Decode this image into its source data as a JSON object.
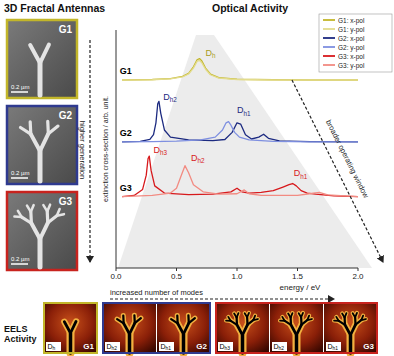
{
  "header": {
    "left_title": "3D Fractal Antennas"
  },
  "sem_images": {
    "arrow_label": "higher generation",
    "items": [
      {
        "label": "G1",
        "scale_bar": "0.2 µm",
        "color": "#c2b62a"
      },
      {
        "label": "G2",
        "scale_bar": "0.2 µm",
        "color": "#2f3a8f"
      },
      {
        "label": "G3",
        "scale_bar": "0.2 µm",
        "color": "#c8231e"
      }
    ]
  },
  "chart_data": {
    "type": "line",
    "title": "Optical Activity",
    "xlabel": "energy / eV",
    "ylabel": "extinction cross-section / arb. unit.",
    "xlim": [
      0,
      2
    ],
    "xticks": [
      {
        "value": 0,
        "label": "0.0"
      },
      {
        "value": 0.5,
        "label": "0.5"
      },
      {
        "value": 1,
        "label": "1.0"
      },
      {
        "value": 1.5,
        "label": "1.5"
      },
      {
        "value": 2,
        "label": "2.0"
      }
    ],
    "ylim": [
      0,
      10
    ],
    "tick_labels": "x",
    "legend": "upper right",
    "arrow_label": "broader operating window",
    "series": [
      {
        "name": "G1: x-pol",
        "color": "#c2b62a",
        "x": [
          0.05,
          0.3,
          0.45,
          0.55,
          0.6,
          0.64,
          0.67,
          0.69,
          0.71,
          0.74,
          0.78,
          0.85,
          1.0,
          1.3,
          1.6,
          2.0
        ],
        "values": [
          7.9,
          7.92,
          7.96,
          8.05,
          8.18,
          8.45,
          8.75,
          8.8,
          8.7,
          8.4,
          8.15,
          8.0,
          7.93,
          7.91,
          7.9,
          7.9
        ]
      },
      {
        "name": "G1: y-pol",
        "color": "#e3dc8c",
        "x": [
          0.05,
          0.3,
          0.45,
          0.55,
          0.6,
          0.64,
          0.67,
          0.69,
          0.71,
          0.74,
          0.78,
          0.85,
          1.0,
          1.3,
          1.6,
          2.0
        ],
        "values": [
          7.9,
          7.91,
          7.95,
          8.03,
          8.15,
          8.4,
          8.68,
          8.72,
          8.62,
          8.35,
          8.12,
          7.98,
          7.92,
          7.9,
          7.9,
          7.9
        ]
      },
      {
        "name": "G2: x-pol",
        "color": "#1c2a80",
        "x": [
          0.05,
          0.2,
          0.28,
          0.31,
          0.33,
          0.345,
          0.355,
          0.37,
          0.4,
          0.45,
          0.6,
          0.8,
          0.9,
          0.96,
          1.0,
          1.03,
          1.07,
          1.12,
          1.18,
          1.22,
          1.26,
          1.35,
          1.6,
          2.0
        ],
        "values": [
          5.3,
          5.32,
          5.4,
          5.6,
          6.1,
          6.9,
          7.0,
          6.5,
          5.8,
          5.5,
          5.38,
          5.35,
          5.4,
          5.7,
          6.1,
          6.05,
          5.6,
          5.42,
          5.5,
          5.62,
          5.45,
          5.34,
          5.31,
          5.3
        ]
      },
      {
        "name": "G2: y-pol",
        "color": "#7e8fe0",
        "x": [
          0.05,
          0.3,
          0.5,
          0.7,
          0.82,
          0.88,
          0.91,
          0.93,
          0.95,
          0.98,
          1.02,
          1.1,
          1.3,
          1.6,
          2.0
        ],
        "values": [
          5.3,
          5.31,
          5.33,
          5.38,
          5.5,
          5.8,
          6.1,
          6.15,
          6.0,
          5.7,
          5.5,
          5.38,
          5.32,
          5.3,
          5.3
        ]
      },
      {
        "name": "G3: x-pol",
        "color": "#d7191c",
        "x": [
          0.05,
          0.15,
          0.22,
          0.25,
          0.265,
          0.275,
          0.29,
          0.32,
          0.4,
          0.6,
          0.8,
          0.95,
          1.0,
          1.04,
          1.1,
          1.2,
          1.3,
          1.38,
          1.43,
          1.46,
          1.49,
          1.53,
          1.58,
          1.65,
          1.8,
          2.0
        ],
        "values": [
          3.0,
          3.05,
          3.3,
          3.9,
          4.6,
          4.7,
          4.1,
          3.45,
          3.15,
          3.08,
          3.1,
          3.2,
          3.35,
          3.2,
          3.15,
          3.18,
          3.25,
          3.4,
          3.5,
          3.55,
          3.45,
          3.25,
          3.15,
          3.1,
          3.03,
          3.0
        ]
      },
      {
        "name": "G3: y-pol",
        "color": "#f28b82",
        "x": [
          0.05,
          0.3,
          0.45,
          0.5,
          0.54,
          0.57,
          0.6,
          0.64,
          0.72,
          0.85,
          1.0,
          1.06,
          1.1,
          1.2,
          1.5,
          1.6,
          1.68,
          1.75,
          2.0
        ],
        "values": [
          3.0,
          3.05,
          3.15,
          3.35,
          3.9,
          4.3,
          4.0,
          3.5,
          3.2,
          3.1,
          3.12,
          3.28,
          3.12,
          3.05,
          3.05,
          3.12,
          3.18,
          3.07,
          3.0
        ]
      }
    ],
    "annotations": [
      {
        "text": "G1",
        "x": 0.03,
        "y": 8.15,
        "color": "#000000"
      },
      {
        "text": "G2",
        "x": 0.03,
        "y": 5.55,
        "color": "#000000"
      },
      {
        "text": "G3",
        "x": 0.03,
        "y": 3.25,
        "color": "#000000"
      },
      {
        "text": "D",
        "sub": "h",
        "x": 0.74,
        "y": 8.9,
        "color": "#a89c1c"
      },
      {
        "text": "D",
        "sub": "h2",
        "x": 0.39,
        "y": 7.05,
        "color": "#1c2a80"
      },
      {
        "text": "D",
        "sub": "h1",
        "x": 1.0,
        "y": 6.5,
        "color": "#1c2a80"
      },
      {
        "text": "D",
        "sub": "h3",
        "x": 0.31,
        "y": 4.85,
        "color": "#d7191c"
      },
      {
        "text": "D",
        "sub": "h2",
        "x": 0.62,
        "y": 4.5,
        "color": "#d7191c"
      },
      {
        "text": "D",
        "sub": "h1",
        "x": 1.47,
        "y": 3.85,
        "color": "#d7191c"
      }
    ]
  },
  "eels": {
    "title": "EELS Activity",
    "arrow_label": "increased number of modes",
    "groups": [
      {
        "label": "G1",
        "color": "#c2b62a",
        "modes": [
          {
            "text": "D",
            "sub": "h"
          }
        ]
      },
      {
        "label": "G2",
        "color": "#2f3a8f",
        "modes": [
          {
            "text": "D",
            "sub": "h2"
          },
          {
            "text": "D",
            "sub": "h1"
          }
        ]
      },
      {
        "label": "G3",
        "color": "#c8231e",
        "modes": [
          {
            "text": "D",
            "sub": "h3"
          },
          {
            "text": "D",
            "sub": "h2"
          },
          {
            "text": "D",
            "sub": "h1"
          }
        ]
      }
    ]
  }
}
